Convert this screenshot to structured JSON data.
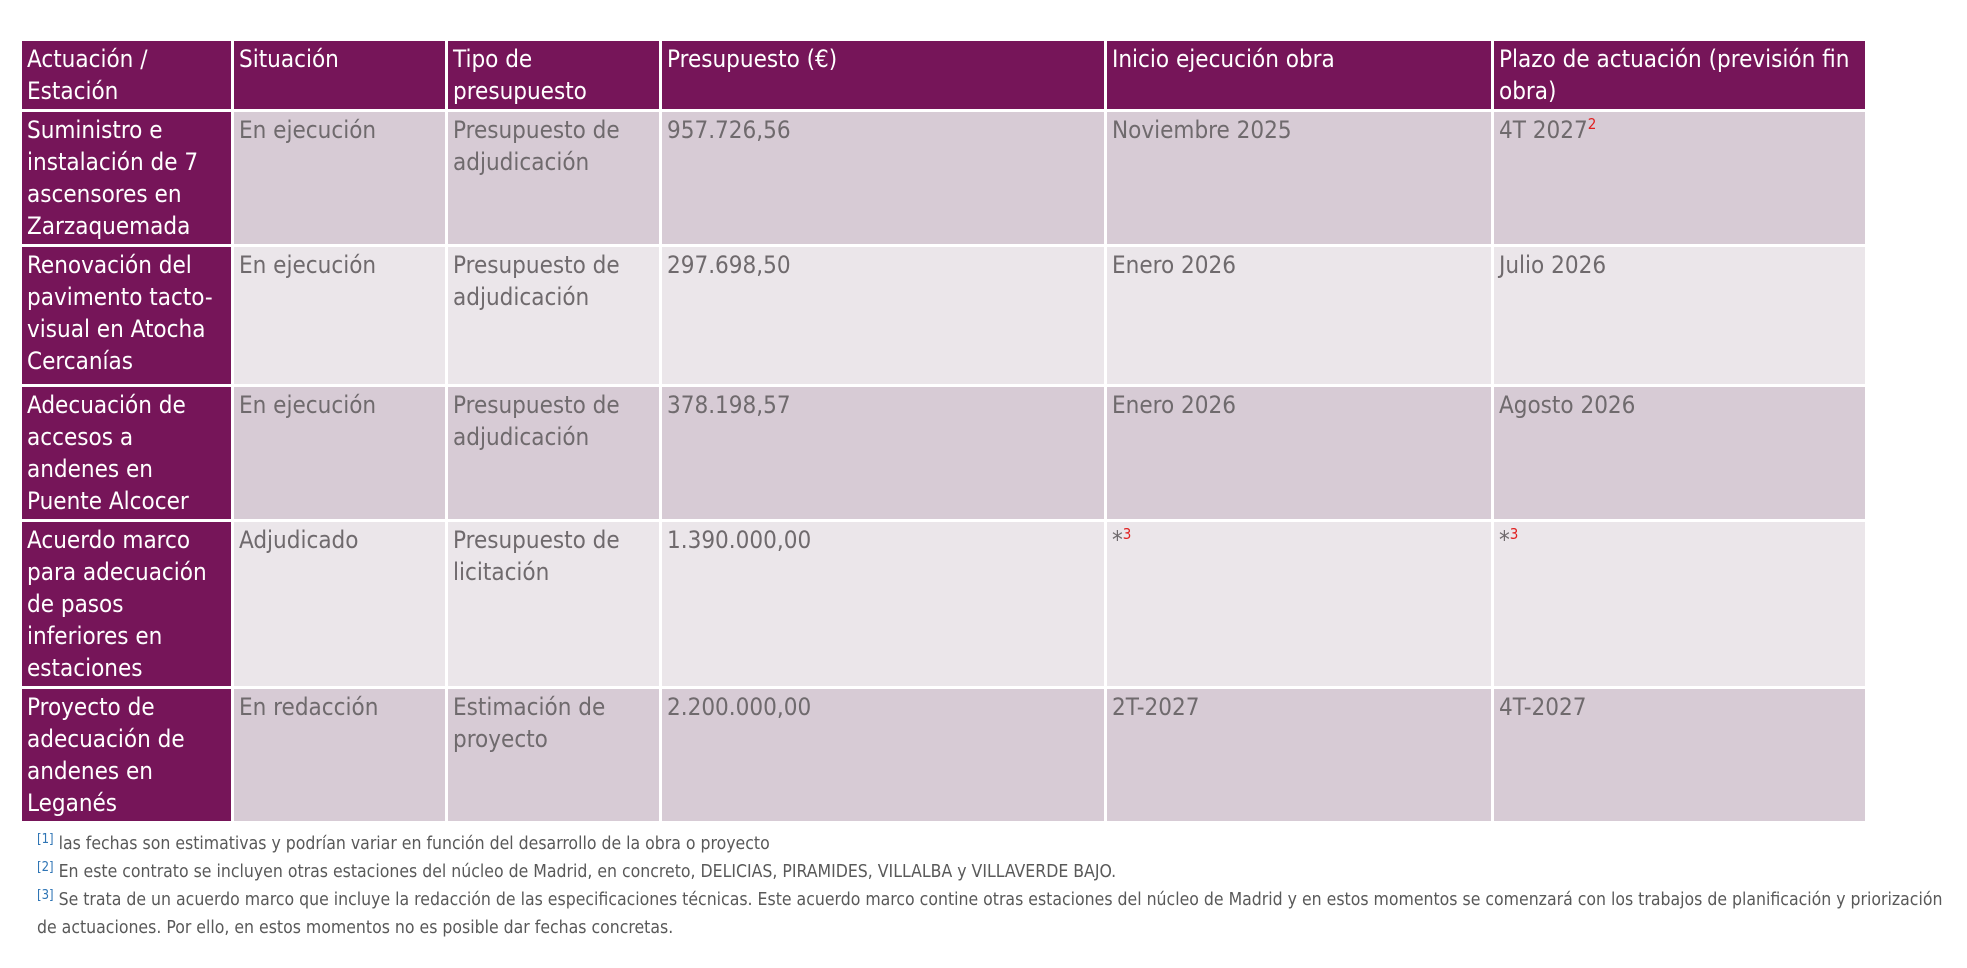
{
  "table": {
    "headers": [
      "Actuación / Estación",
      "Situación",
      "Tipo de presupuesto",
      "Presupuesto (€)",
      "Inicio ejecución obra",
      "Plazo de actuación (previsión fin obra)"
    ],
    "rows": [
      {
        "station": "Suministro e instalación de 7 ascensores en Zarzaquemada",
        "situation": "En ejecución",
        "budget_type": "Presupuesto de adjudicación",
        "budget": "957.726,56",
        "start": "Noviembre 2025",
        "start_ref": "",
        "end": "4T 2027",
        "end_ref": "2"
      },
      {
        "station": "Renovación del pavimento tacto-visual en Atocha Cercanías",
        "situation": "En ejecución",
        "budget_type": "Presupuesto de adjudicación",
        "budget": "297.698,50",
        "start": "Enero 2026",
        "start_ref": "",
        "end": "Julio 2026",
        "end_ref": ""
      },
      {
        "station": "Adecuación de accesos a andenes en Puente Alcocer",
        "situation": "En ejecución",
        "budget_type": "Presupuesto de adjudicación",
        "budget": "378.198,57",
        "start": "Enero 2026",
        "start_ref": "",
        "end": "Agosto 2026",
        "end_ref": ""
      },
      {
        "station": "Acuerdo marco para adecuación de pasos inferiores en estaciones",
        "situation": "Adjudicado",
        "budget_type": "Presupuesto de licitación",
        "budget": "1.390.000,00",
        "start": "*",
        "start_ref": "3",
        "end": "*",
        "end_ref": "3"
      },
      {
        "station": "Proyecto de adecuación de andenes en Leganés",
        "situation": "En redacción",
        "budget_type": "Estimación de proyecto",
        "budget": "2.200.000,00",
        "start": "2T-2027",
        "start_ref": "",
        "end": "4T-2027",
        "end_ref": ""
      }
    ]
  },
  "footnotes": [
    {
      "mark": "[1]",
      "text": " las fechas son estimativas y podrían variar en función del desarrollo de la obra o proyecto"
    },
    {
      "mark": "[2]",
      "text": " En este contrato se incluyen otras estaciones del núcleo de Madrid, en concreto, DELICIAS, PIRAMIDES, VILLALBA y VILLAVERDE BAJO."
    },
    {
      "mark": "[3]",
      "text": " Se trata de un acuerdo marco que incluye la redacción de las especificaciones técnicas. Este acuerdo marco contine otras estaciones del núcleo de Madrid y en estos momentos se comenzará con los trabajos de planificación y priorización de actuaciones. Por ello, en estos momentos no es posible dar fechas concretas."
    }
  ],
  "colors": {
    "header_bg": "#761559",
    "row_odd_bg": "#d7cbd5",
    "row_even_bg": "#ebe6ea",
    "footnote_mark": "#2f75b5",
    "ref_mark": "#e02020"
  }
}
